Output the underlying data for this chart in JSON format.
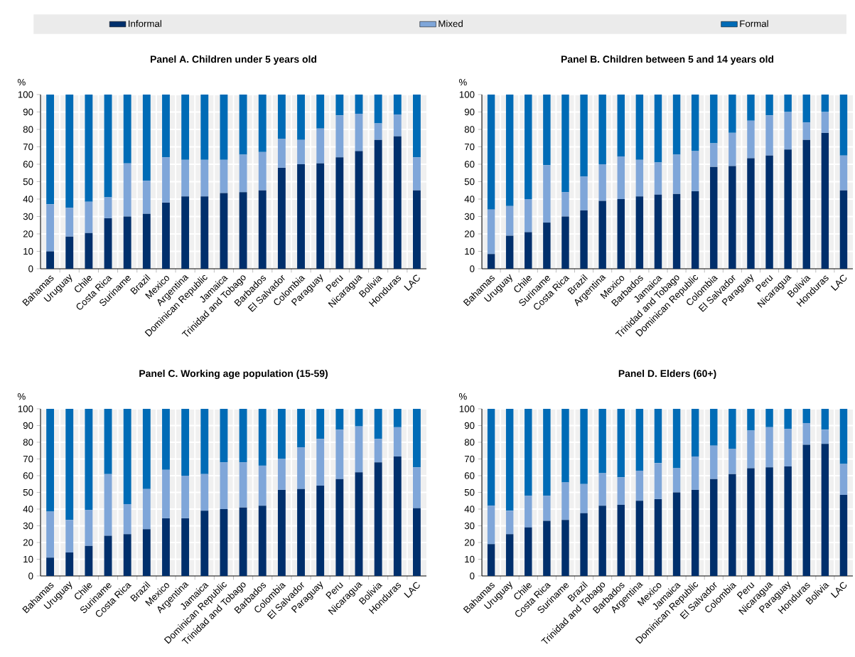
{
  "chart_data": [
    {
      "type": "bar",
      "stacked": true,
      "title": "Panel A. Children under 5 years old",
      "ylabel": "%",
      "legend": "top",
      "grid": true,
      "categories": [
        "Bahamas",
        "Uruguay",
        "Chile",
        "Costa Rica",
        "Suriname",
        "Brazil",
        "Mexico",
        "Argentina",
        "Dominican Republic",
        "Jamaica",
        "Trinidad and Tobago",
        "Barbados",
        "El Salvador",
        "Colombia",
        "Paraguay",
        "Peru",
        "Nicaragua",
        "Bolivia",
        "Honduras",
        "LAC"
      ],
      "ylim": [
        0,
        100
      ],
      "yticks": [
        0,
        10,
        20,
        30,
        40,
        50,
        60,
        70,
        80,
        90,
        100
      ],
      "series": [
        {
          "name": "Informal",
          "color": "#002f6c",
          "values": [
            10,
            18.5,
            20.5,
            29,
            30,
            31.5,
            38,
            41.5,
            41.5,
            43.5,
            44,
            45,
            58,
            60,
            60.5,
            64,
            67.5,
            74,
            76,
            45
          ]
        },
        {
          "name": "Mixed",
          "color": "#7fa6d9",
          "values": [
            27,
            16.5,
            18,
            12,
            30.5,
            19,
            26,
            21,
            21,
            19,
            21.5,
            22,
            16.5,
            14,
            20,
            24,
            21.5,
            9.5,
            12.5,
            19
          ]
        },
        {
          "name": "Formal",
          "color": "#006bb6",
          "values": [
            63,
            65,
            61.5,
            59,
            39.5,
            49.5,
            36,
            37.5,
            37.5,
            37.5,
            34.5,
            33,
            25.5,
            26,
            19.5,
            12,
            11,
            16.5,
            11.5,
            36
          ]
        }
      ]
    },
    {
      "type": "bar",
      "stacked": true,
      "title": "Panel B. Children between 5 and 14 years old",
      "ylabel": "%",
      "grid": true,
      "categories": [
        "Bahamas",
        "Uruguay",
        "Chile",
        "Suriname",
        "Costa Rica",
        "Brazil",
        "Argentina",
        "Mexico",
        "Barbados",
        "Jamaica",
        "Trinidad and Tobago",
        "Dominican Republic",
        "Colombia",
        "El Salvador",
        "Paraguay",
        "Peru",
        "Nicaragua",
        "Bolivia",
        "Honduras",
        "LAC"
      ],
      "ylim": [
        0,
        100
      ],
      "yticks": [
        0,
        10,
        20,
        30,
        40,
        50,
        60,
        70,
        80,
        90,
        100
      ],
      "series": [
        {
          "color": "#002f6c",
          "values": [
            8.5,
            19,
            21,
            26.5,
            30,
            33.5,
            39,
            40,
            41.5,
            42.5,
            43,
            44.5,
            58.5,
            59,
            63.5,
            65,
            68.5,
            74,
            78,
            45
          ]
        },
        {
          "color": "#7fa6d9",
          "values": [
            25.5,
            17,
            19,
            33,
            14,
            19.5,
            21,
            24.5,
            21,
            18.5,
            22.5,
            23,
            13.5,
            19,
            21.5,
            23,
            21.5,
            10,
            12,
            20
          ]
        },
        {
          "color": "#006bb6",
          "values": [
            66,
            64,
            60,
            40.5,
            56,
            47,
            40,
            35.5,
            37.5,
            39,
            34.5,
            32.5,
            28,
            22,
            15,
            12,
            10,
            16,
            10,
            35
          ]
        }
      ]
    },
    {
      "type": "bar",
      "stacked": true,
      "title": "Panel C. Working age population (15-59)",
      "ylabel": "%",
      "grid": true,
      "categories": [
        "Bahamas",
        "Uruguay",
        "Chile",
        "Suriname",
        "Costa Rica",
        "Brazil",
        "Mexico",
        "Argentina",
        "Jamaica",
        "Dominican Republic",
        "Trinidad and Tobago",
        "Barbados",
        "Colombia",
        "El Salvador",
        "Paraguay",
        "Peru",
        "Nicaragua",
        "Bolivia",
        "Honduras",
        "LAC"
      ],
      "ylim": [
        0,
        100
      ],
      "yticks": [
        0,
        10,
        20,
        30,
        40,
        50,
        60,
        70,
        80,
        90,
        100
      ],
      "series": [
        {
          "color": "#002f6c",
          "values": [
            11,
            14,
            18,
            24,
            25,
            28,
            34.5,
            34.5,
            39,
            40,
            41,
            42,
            51.5,
            52,
            54,
            58,
            62,
            68,
            71.5,
            40.5
          ]
        },
        {
          "color": "#7fa6d9",
          "values": [
            27.5,
            19.5,
            21.5,
            37,
            18,
            24,
            29,
            25.5,
            22,
            28,
            27,
            24,
            18.5,
            25,
            28,
            29.5,
            27.5,
            14,
            17.5,
            24.5
          ]
        },
        {
          "color": "#006bb6",
          "values": [
            61.5,
            66.5,
            60.5,
            39,
            57,
            48,
            36.5,
            40,
            39,
            32,
            32,
            34,
            30,
            23,
            18,
            12.5,
            10.5,
            18,
            11,
            35
          ]
        }
      ]
    },
    {
      "type": "bar",
      "stacked": true,
      "title": "Panel D. Elders (60+)",
      "ylabel": "%",
      "grid": true,
      "categories": [
        "Bahamas",
        "Uruguay",
        "Chile",
        "Costa Rica",
        "Suriname",
        "Brazil",
        "Trinidad and Tobago",
        "Barbados",
        "Argentina",
        "Mexico",
        "Jamaica",
        "Dominican Republic",
        "El Salvador",
        "Colombia",
        "Peru",
        "Nicaragua",
        "Paraguay",
        "Honduras",
        "Bolivia",
        "LAC"
      ],
      "ylim": [
        0,
        100
      ],
      "yticks": [
        0,
        10,
        20,
        30,
        40,
        50,
        60,
        70,
        80,
        90,
        100
      ],
      "series": [
        {
          "color": "#002f6c",
          "values": [
            19,
            25,
            29,
            33,
            33.5,
            37.5,
            42,
            42.5,
            45,
            46,
            50,
            51.5,
            58,
            61,
            64.5,
            65,
            65.5,
            78.5,
            79,
            48.5
          ]
        },
        {
          "color": "#7fa6d9",
          "values": [
            23,
            14,
            19,
            15,
            22.5,
            17.5,
            19.5,
            16.5,
            18,
            21.5,
            14.5,
            20,
            20,
            15,
            22.5,
            24,
            22.5,
            13,
            8.5,
            18.5
          ]
        },
        {
          "color": "#006bb6",
          "values": [
            58,
            61,
            52,
            52,
            44,
            45,
            38.5,
            41,
            37,
            32.5,
            35.5,
            28.5,
            22,
            24,
            13,
            11,
            12,
            8.5,
            12.5,
            33
          ]
        }
      ]
    }
  ]
}
